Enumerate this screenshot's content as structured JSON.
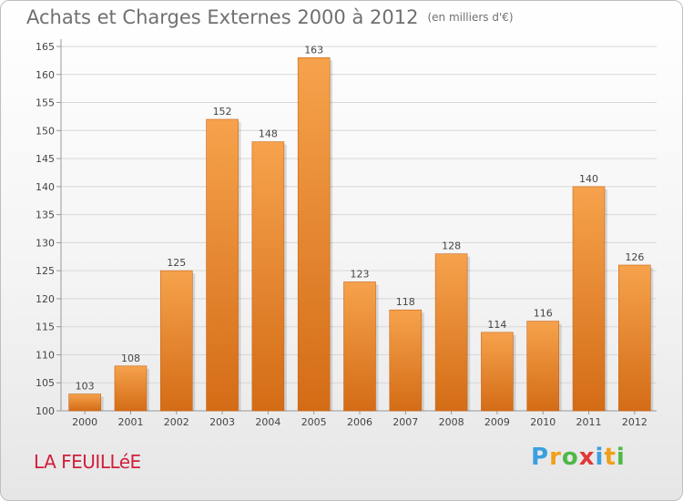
{
  "header": {
    "title": "Achats et Charges Externes 2000 à 2012",
    "unit": "(en milliers d'€)"
  },
  "footer": {
    "commune": "LA FEUILLéE",
    "logo": "Proxiti"
  },
  "colors": {
    "bar_light": "#f6a24c",
    "bar_dark": "#d46c16",
    "grid": "#d7d7d7",
    "axis_text": "#444444",
    "title": "#707070",
    "commune": "#d01f3c"
  },
  "chart_data": {
    "type": "bar",
    "categories": [
      "2000",
      "2001",
      "2002",
      "2003",
      "2004",
      "2005",
      "2006",
      "2007",
      "2008",
      "2009",
      "2010",
      "2011",
      "2012"
    ],
    "values": [
      103,
      108,
      125,
      152,
      148,
      163,
      123,
      118,
      128,
      114,
      116,
      140,
      126
    ],
    "title": "Achats et Charges Externes 2000 à 2012",
    "ylim": [
      100,
      165
    ],
    "yticks": [
      100,
      105,
      110,
      115,
      120,
      125,
      130,
      135,
      140,
      145,
      150,
      155,
      160,
      165
    ],
    "grid": true,
    "data_labels": true
  }
}
